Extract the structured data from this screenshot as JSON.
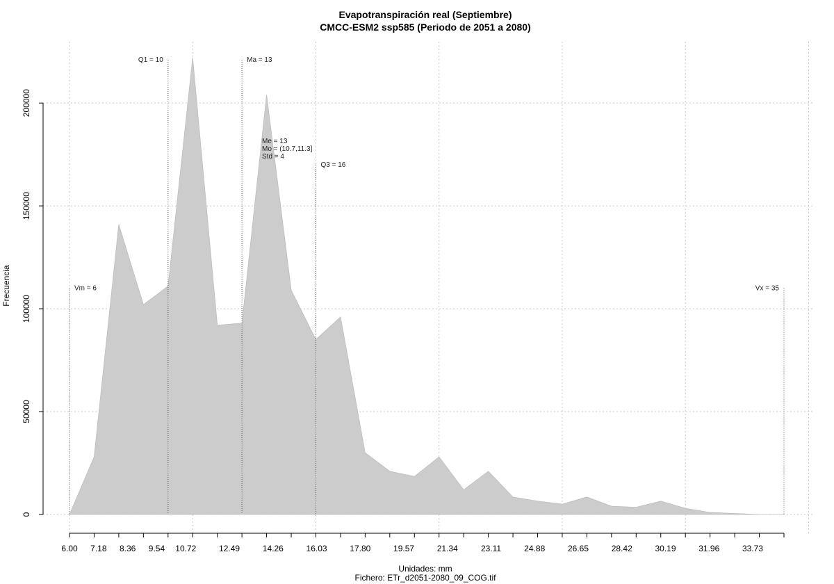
{
  "chart_data": {
    "type": "area",
    "title": "Evapotranspiración real (Septiembre)",
    "subtitle": "CMCC-ESM2 ssp585 (Periodo de 2051 a 2080)",
    "xlabel": "Unidades: mm",
    "xlabel2": "Fichero: ETr_d2051-2080_09_COG.tif",
    "ylabel": "Frecuencia",
    "xlim": [
      6.0,
      35.0
    ],
    "ylim": [
      0,
      220000
    ],
    "x_tick_labels": [
      "6.00",
      "7.18",
      "8.36",
      "9.54",
      "10.72",
      "12.49",
      "14.26",
      "16.03",
      "17.80",
      "19.57",
      "21.34",
      "23.11",
      "24.88",
      "26.65",
      "28.42",
      "30.19",
      "31.96",
      "33.73"
    ],
    "x_tick_values": [
      6.0,
      7.18,
      8.36,
      9.54,
      10.72,
      12.49,
      14.26,
      16.03,
      17.8,
      19.57,
      21.34,
      23.11,
      24.88,
      26.65,
      28.42,
      30.19,
      31.96,
      33.73
    ],
    "y_tick_labels": [
      "0",
      "50000",
      "100000",
      "150000",
      "200000"
    ],
    "y_tick_values": [
      0,
      50000,
      100000,
      150000,
      200000
    ],
    "grid": true,
    "fill_color": "#cccccc",
    "x": [
      6.0,
      7.0,
      8.0,
      9.0,
      10.0,
      11.0,
      12.0,
      13.0,
      14.0,
      15.0,
      16.0,
      17.0,
      18.0,
      19.0,
      20.0,
      21.0,
      22.0,
      23.0,
      24.0,
      25.0,
      26.0,
      27.0,
      28.0,
      29.0,
      30.0,
      31.0,
      32.0,
      33.0,
      34.0,
      35.0
    ],
    "values": [
      0,
      28000,
      141000,
      102000,
      111000,
      222000,
      92000,
      93000,
      204000,
      109000,
      85000,
      96000,
      30000,
      21000,
      18500,
      28000,
      12000,
      21000,
      8500,
      6500,
      5000,
      8500,
      4000,
      3500,
      6500,
      3000,
      1000,
      500,
      0,
      0
    ],
    "annotations": [
      {
        "label": "Vm = 6",
        "x": 6.0,
        "y": 110000,
        "line_top": 110000,
        "align": "left"
      },
      {
        "label": "Q1 = 10",
        "x": 10.0,
        "y": 221000,
        "line_top": 221000,
        "align": "right"
      },
      {
        "label": "Ma = 13",
        "x": 13.0,
        "y": 221000,
        "line_top": 221000,
        "align": "left"
      },
      {
        "label": "Q3 = 16",
        "x": 16.0,
        "y": 170000,
        "line_top": 170000,
        "align": "left"
      },
      {
        "label": "Vx = 35",
        "x": 35.0,
        "y": 110000,
        "line_top": 110000,
        "align": "right"
      }
    ],
    "stats": [
      "Me = 13",
      "Mo = (10.7,11.3]",
      "Std = 4"
    ]
  }
}
